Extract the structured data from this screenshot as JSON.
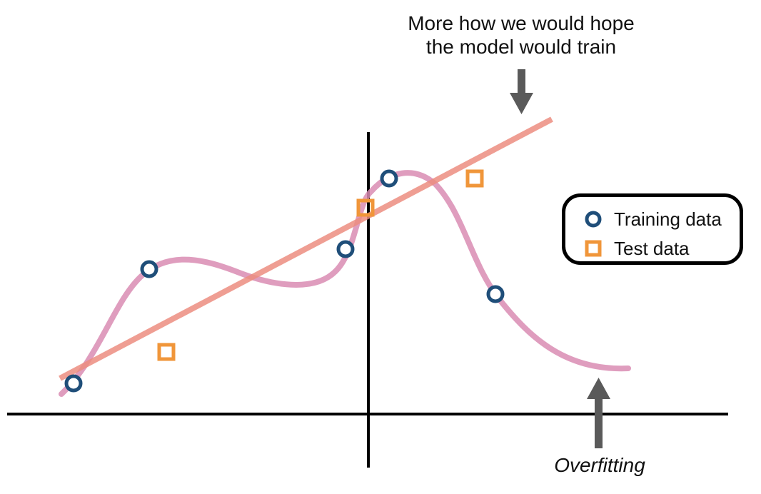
{
  "annotations": {
    "hope_line1": "More how we would hope",
    "hope_line2": "the model would train",
    "overfitting": "Overfitting"
  },
  "legend": {
    "training_label": "Training data",
    "test_label": "Test data"
  },
  "colors": {
    "training": "#1f4e79",
    "test": "#f0963a",
    "linear_fit": "#ec8d80",
    "overfit_curve": "#d98cb3",
    "axes": "#000000",
    "arrow": "#5a5a5a"
  },
  "icons": {
    "training_marker": "circle-marker-icon",
    "test_marker": "square-marker-icon",
    "arrow": "arrow-icon"
  }
}
